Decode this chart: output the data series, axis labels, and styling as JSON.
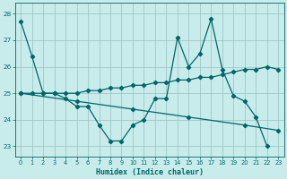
{
  "xlabel": "Humidex (Indice chaleur)",
  "bg_color": "#c8ecec",
  "line_color": "#006666",
  "grid_color": "#9bbfbf",
  "xlim": [
    -0.5,
    23.5
  ],
  "ylim": [
    22.6,
    28.4
  ],
  "yticks": [
    23,
    24,
    25,
    26,
    27,
    28
  ],
  "xticks": [
    0,
    1,
    2,
    3,
    4,
    5,
    6,
    7,
    8,
    9,
    10,
    11,
    12,
    13,
    14,
    15,
    16,
    17,
    18,
    19,
    20,
    21,
    22,
    23
  ],
  "series1_x": [
    0,
    1,
    2,
    3,
    4,
    5,
    6,
    7,
    8,
    9,
    10,
    11,
    12,
    13,
    14,
    15,
    16,
    17,
    18,
    19,
    20,
    21,
    22
  ],
  "series1_y": [
    27.7,
    26.4,
    25.0,
    25.0,
    24.8,
    24.5,
    24.5,
    23.8,
    23.2,
    23.2,
    23.8,
    24.0,
    24.8,
    24.8,
    27.1,
    26.0,
    26.5,
    27.8,
    25.9,
    24.9,
    24.7,
    24.1,
    23.0
  ],
  "series2_x": [
    0,
    1,
    2,
    3,
    4,
    5,
    6,
    7,
    8,
    9,
    10,
    11,
    12,
    13,
    14,
    15,
    16,
    17,
    18,
    19,
    20,
    21,
    22,
    23
  ],
  "series2_y": [
    25.0,
    25.0,
    25.0,
    25.0,
    25.0,
    25.0,
    25.1,
    25.1,
    25.2,
    25.2,
    25.3,
    25.3,
    25.4,
    25.4,
    25.5,
    25.5,
    25.6,
    25.6,
    25.7,
    25.8,
    25.9,
    25.9,
    26.0,
    25.9
  ],
  "series3_x": [
    0,
    5,
    10,
    15,
    20,
    23
  ],
  "series3_y": [
    25.0,
    24.7,
    24.4,
    24.1,
    23.8,
    23.6
  ]
}
